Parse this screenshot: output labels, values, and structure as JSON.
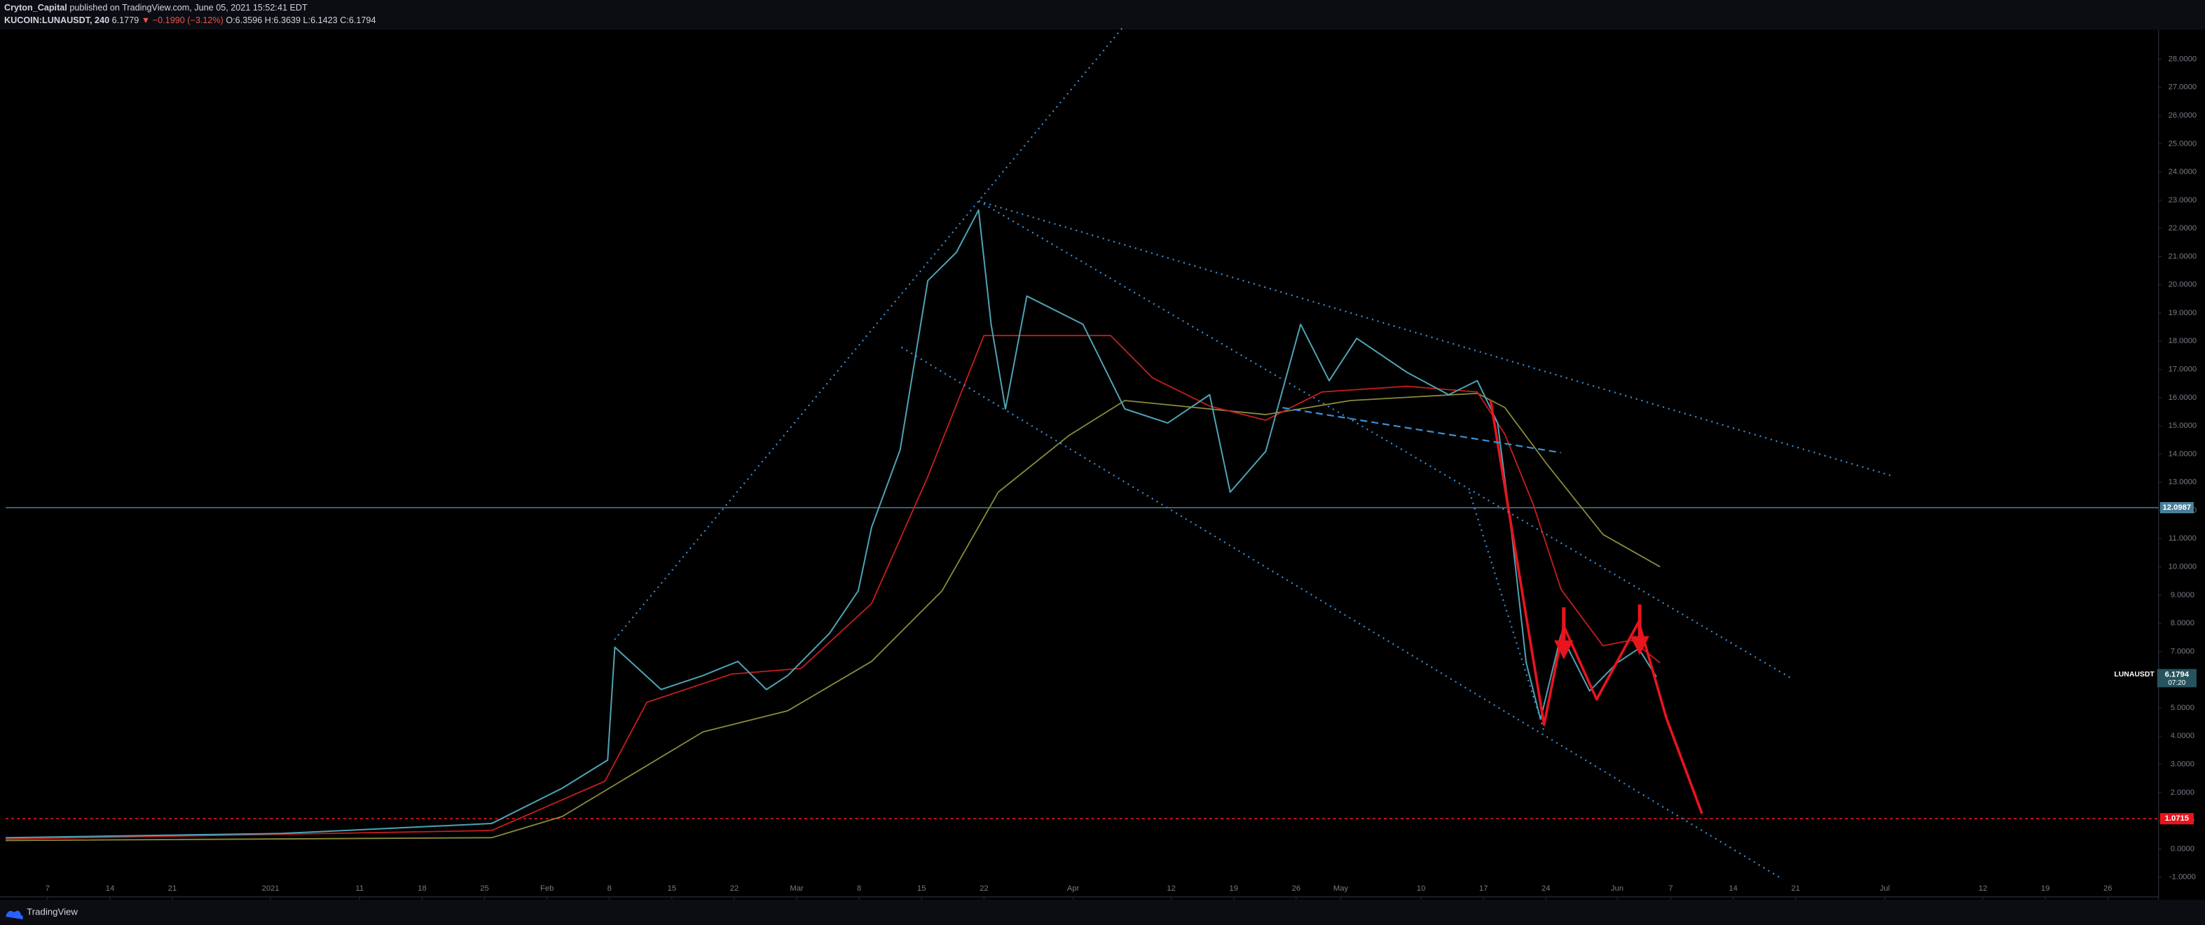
{
  "header": {
    "author": "Cryton_Capital",
    "published": "published on TradingView.com, June 05, 2021 15:52:41 EDT",
    "symbol": "KUCOIN:LUNAUSDT, 240",
    "last": "6.1779",
    "change": "▼ −0.1990 (−3.12%)",
    "open": "O:6.3596",
    "high": "H:6.3639",
    "low": "L:6.1423",
    "close": "C:6.1794"
  },
  "footer": {
    "brand": "TradingView"
  },
  "chart_data": {
    "type": "line",
    "xlim": [
      -4.7,
      236.7
    ],
    "ylim": [
      -1.7,
      29.05
    ],
    "xticks": [
      {
        "value": 0,
        "label": "7"
      },
      {
        "value": 7,
        "label": "14"
      },
      {
        "value": 14,
        "label": "21"
      },
      {
        "value": 25,
        "label": "2021"
      },
      {
        "value": 35,
        "label": "11"
      },
      {
        "value": 42,
        "label": "18"
      },
      {
        "value": 49,
        "label": "25"
      },
      {
        "value": 56,
        "label": "Feb"
      },
      {
        "value": 63,
        "label": "8"
      },
      {
        "value": 70,
        "label": "15"
      },
      {
        "value": 77,
        "label": "22"
      },
      {
        "value": 84,
        "label": "Mar"
      },
      {
        "value": 91,
        "label": "8"
      },
      {
        "value": 98,
        "label": "15"
      },
      {
        "value": 105,
        "label": "22"
      },
      {
        "value": 115,
        "label": "Apr"
      },
      {
        "value": 126,
        "label": "12"
      },
      {
        "value": 133,
        "label": "19"
      },
      {
        "value": 140,
        "label": "26"
      },
      {
        "value": 145,
        "label": "May"
      },
      {
        "value": 154,
        "label": "10"
      },
      {
        "value": 161,
        "label": "17"
      },
      {
        "value": 168,
        "label": "24"
      },
      {
        "value": 176,
        "label": "Jun"
      },
      {
        "value": 182,
        "label": "7"
      },
      {
        "value": 189,
        "label": "14"
      },
      {
        "value": 196,
        "label": "21"
      },
      {
        "value": 206,
        "label": "Jul"
      },
      {
        "value": 217,
        "label": "12"
      },
      {
        "value": 224,
        "label": "19"
      },
      {
        "value": 231,
        "label": "26"
      }
    ],
    "yticks": [
      {
        "value": -1,
        "label": "-1.0000"
      },
      {
        "value": 0,
        "label": "0.0000"
      },
      {
        "value": 1,
        "label": "1.0000"
      },
      {
        "value": 2,
        "label": "2.0000"
      },
      {
        "value": 3,
        "label": "3.0000"
      },
      {
        "value": 4,
        "label": "4.0000"
      },
      {
        "value": 5,
        "label": "5.0000"
      },
      {
        "value": 6,
        "label": "6.0000"
      },
      {
        "value": 7,
        "label": "7.0000"
      },
      {
        "value": 8,
        "label": "8.0000"
      },
      {
        "value": 9,
        "label": "9.0000"
      },
      {
        "value": 10,
        "label": "10.0000"
      },
      {
        "value": 11,
        "label": "11.0000"
      },
      {
        "value": 12,
        "label": "12.0000"
      },
      {
        "value": 13,
        "label": "13.0000"
      },
      {
        "value": 14,
        "label": "14.0000"
      },
      {
        "value": 15,
        "label": "15.0000"
      },
      {
        "value": 16,
        "label": "16.0000"
      },
      {
        "value": 17,
        "label": "17.0000"
      },
      {
        "value": 18,
        "label": "18.0000"
      },
      {
        "value": 19,
        "label": "19.0000"
      },
      {
        "value": 20,
        "label": "20.0000"
      },
      {
        "value": 21,
        "label": "21.0000"
      },
      {
        "value": 22,
        "label": "22.0000"
      },
      {
        "value": 23,
        "label": "23.0000"
      },
      {
        "value": 24,
        "label": "24.0000"
      },
      {
        "value": 25,
        "label": "25.0000"
      },
      {
        "value": 26,
        "label": "26.0000"
      },
      {
        "value": 27,
        "label": "27.0000"
      },
      {
        "value": 28,
        "label": "28.0000"
      }
    ],
    "series": [
      {
        "color": "#8a8a3a",
        "width": 0.9,
        "x": [
          -4.7,
          49.8,
          57.7,
          65.6,
          73.5,
          83,
          92.4,
          100.3,
          106.6,
          114.5,
          120.8,
          136.6,
          146.1,
          160.3,
          163.4,
          168.1,
          174.4,
          180.8
        ],
        "values": [
          0.3,
          0.4,
          1.15,
          2.65,
          4.15,
          4.9,
          6.65,
          9.15,
          12.65,
          14.65,
          15.9,
          15.4,
          15.9,
          16.15,
          15.65,
          13.65,
          11.15,
          10.0
        ]
      },
      {
        "color": "#c41e1e",
        "width": 0.9,
        "x": [
          -4.7,
          49.8,
          62.5,
          67.2,
          76.7,
          84.5,
          92.4,
          98.7,
          105,
          119.2,
          123.9,
          130.3,
          136.6,
          142.9,
          152.4,
          160.3,
          163.4,
          166.6,
          169.7,
          174.4,
          177.6,
          180.8
        ],
        "values": [
          0.35,
          0.65,
          2.4,
          5.2,
          6.2,
          6.4,
          8.7,
          13.2,
          18.2,
          18.2,
          16.7,
          15.7,
          15.2,
          16.2,
          16.4,
          16.2,
          14.7,
          12.2,
          9.2,
          7.2,
          7.4,
          6.6
        ]
      },
      {
        "color": "#4ea3b5",
        "width": 1,
        "x": [
          -4.7,
          26.2,
          49.8,
          57.7,
          62.8,
          63.6,
          68.8,
          73.5,
          77.4,
          80.6,
          83,
          87.7,
          90.9,
          92.4,
          95.6,
          98.7,
          101.9,
          104.4,
          105.8,
          107.4,
          109.8,
          116.1,
          120.8,
          125.6,
          130.3,
          132.6,
          136.6,
          140.5,
          143.7,
          146.8,
          152.4,
          157.1,
          160.3,
          162.6,
          164.2,
          165.8,
          167.4,
          169.7,
          172.9,
          176,
          178.4,
          180.4
        ],
        "values": [
          0.4,
          0.55,
          0.9,
          2.15,
          3.15,
          7.15,
          5.65,
          6.15,
          6.65,
          5.65,
          6.15,
          7.65,
          9.15,
          11.4,
          14.15,
          20.15,
          21.15,
          22.65,
          18.6,
          15.6,
          19.6,
          18.6,
          15.6,
          15.1,
          16.1,
          12.65,
          14.1,
          18.6,
          16.6,
          18.1,
          16.9,
          16.1,
          16.6,
          15.1,
          11.1,
          6.6,
          4.6,
          7.6,
          5.6,
          6.6,
          7.1,
          6.1
        ]
      },
      {
        "color": "#e8141e",
        "width": 1.8,
        "x": [
          161.8,
          167.8,
          170,
          173.7,
          178.4,
          181.5,
          185.5
        ],
        "values": [
          15.9,
          4.4,
          7.9,
          5.3,
          8.05,
          4.65,
          1.25
        ]
      }
    ],
    "levels": [
      {
        "value": 12.0987,
        "color": "#4a7f9a"
      },
      {
        "value": 1.0715,
        "color": "#e8141e"
      }
    ],
    "last_price": {
      "symbol": "LUNAUSDT",
      "value": 6.1794,
      "countdown": "07:20",
      "color": "#26535e"
    }
  }
}
